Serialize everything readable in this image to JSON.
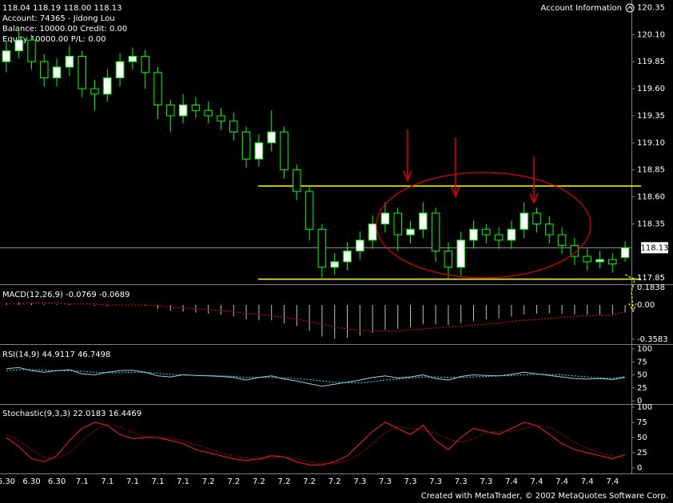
{
  "header": {
    "ohlc": "118.04 118.19 118.00 118.13",
    "account": "Account: 74365 - Jidong Lou",
    "balance": "Balance: 10000.00 Credit: 0.00",
    "equity": "Equity 10000.00 P/L: 0.00",
    "account_info": "Account Information"
  },
  "footer": "Created with MetaTrader, © 2002 MetaQuotes Software Corp.",
  "chart_data": [
    {
      "type": "candlestick",
      "categories": [
        "6.30",
        null,
        "6.30",
        null,
        "6.30",
        null,
        "7.1",
        null,
        "7.1",
        null,
        "7.1",
        null,
        "7.1",
        null,
        "7.1",
        null,
        "7.2",
        null,
        "7.2",
        null,
        "7.2",
        null,
        "7.2",
        null,
        "7.2",
        null,
        "7.2",
        null,
        "7.3",
        null,
        "7.3",
        null,
        "7.3",
        null,
        "7.3",
        null,
        "7.3",
        null,
        "7.3",
        null,
        "7.4",
        null,
        "7.4",
        null,
        "7.4",
        null,
        "7.4",
        null,
        "7.4",
        null
      ],
      "open": [
        119.85,
        119.95,
        120.05,
        119.85,
        119.7,
        119.8,
        119.9,
        119.6,
        119.55,
        119.7,
        119.85,
        119.9,
        119.75,
        119.45,
        119.35,
        119.45,
        119.4,
        119.35,
        119.3,
        119.2,
        118.95,
        119.1,
        119.2,
        118.85,
        118.65,
        118.3,
        117.95,
        118.0,
        118.1,
        118.2,
        118.35,
        118.45,
        118.25,
        118.3,
        118.45,
        118.1,
        117.95,
        118.2,
        118.3,
        118.25,
        118.2,
        118.3,
        118.45,
        118.35,
        118.25,
        118.15,
        118.05,
        118.0,
        118.02,
        118.04
      ],
      "high": [
        120.05,
        120.15,
        120.1,
        119.92,
        119.88,
        120.0,
        119.95,
        119.68,
        119.78,
        119.93,
        119.98,
        119.96,
        119.8,
        119.5,
        119.55,
        119.52,
        119.48,
        119.42,
        119.38,
        119.25,
        119.18,
        119.4,
        119.25,
        118.9,
        118.7,
        118.35,
        118.08,
        118.18,
        118.28,
        118.43,
        118.55,
        118.5,
        118.38,
        118.55,
        118.5,
        118.18,
        118.28,
        118.38,
        118.35,
        118.32,
        118.38,
        118.55,
        118.5,
        118.42,
        118.32,
        118.22,
        118.12,
        118.1,
        118.08,
        118.19
      ],
      "low": [
        119.75,
        119.88,
        119.78,
        119.62,
        119.62,
        119.72,
        119.52,
        119.4,
        119.48,
        119.62,
        119.78,
        119.6,
        119.32,
        119.2,
        119.28,
        119.33,
        119.28,
        119.22,
        119.12,
        118.87,
        118.88,
        119.02,
        118.77,
        118.57,
        118.2,
        117.85,
        117.88,
        117.92,
        118.02,
        118.12,
        118.27,
        118.1,
        118.17,
        118.22,
        118.0,
        117.85,
        117.87,
        118.12,
        118.17,
        118.12,
        118.12,
        118.22,
        118.27,
        118.17,
        118.07,
        117.97,
        117.92,
        117.94,
        117.9,
        118.0
      ],
      "close": [
        119.95,
        120.05,
        119.85,
        119.7,
        119.8,
        119.9,
        119.6,
        119.55,
        119.7,
        119.85,
        119.9,
        119.75,
        119.45,
        119.35,
        119.45,
        119.4,
        119.35,
        119.3,
        119.2,
        118.95,
        119.1,
        119.2,
        118.85,
        118.65,
        118.3,
        117.95,
        118.0,
        118.1,
        118.2,
        118.35,
        118.45,
        118.25,
        118.3,
        118.45,
        118.1,
        117.95,
        118.2,
        118.3,
        118.25,
        118.2,
        118.3,
        118.45,
        118.35,
        118.25,
        118.15,
        118.05,
        118.0,
        118.02,
        117.98,
        118.13
      ],
      "up_color": "#ffffff",
      "down_color": "#000000",
      "wick_color": "#00ff00",
      "ylim": [
        117.8,
        120.42
      ],
      "yticks": [
        120.35,
        {
          "value": 120.1,
          "label": "120.10"
        },
        119.85,
        {
          "value": 119.6,
          "label": "119.60"
        },
        119.35,
        {
          "value": 119.1,
          "label": "119.10"
        },
        118.85,
        {
          "value": 118.6,
          "label": "118.60"
        },
        118.35,
        117.85
      ],
      "current_price": 118.13,
      "hlines": [
        118.7,
        117.84
      ],
      "hline_color": "#ffff00",
      "grid": false
    },
    {
      "type": "macd",
      "label": "MACD(12,26,9) -0.0769 -0.0689",
      "values": [
        0.02,
        0.03,
        0.02,
        0.01,
        0.01,
        0.01,
        0,
        -0.01,
        -0.01,
        0,
        0,
        -0.01,
        -0.04,
        -0.06,
        -0.07,
        -0.08,
        -0.09,
        -0.1,
        -0.12,
        -0.15,
        -0.16,
        -0.16,
        -0.19,
        -0.22,
        -0.27,
        -0.33,
        -0.35,
        -0.34,
        -0.32,
        -0.29,
        -0.26,
        -0.25,
        -0.23,
        -0.2,
        -0.2,
        -0.21,
        -0.19,
        -0.17,
        -0.15,
        -0.14,
        -0.12,
        -0.1,
        -0.09,
        -0.09,
        -0.09,
        -0.1,
        -0.1,
        -0.1,
        -0.1,
        -0.08
      ],
      "signal": [
        0.01,
        0.01,
        0.02,
        0.02,
        0.02,
        0.01,
        0.01,
        0.01,
        0,
        0,
        0,
        0,
        -0.01,
        -0.02,
        -0.03,
        -0.04,
        -0.05,
        -0.06,
        -0.07,
        -0.09,
        -0.1,
        -0.11,
        -0.13,
        -0.15,
        -0.17,
        -0.2,
        -0.23,
        -0.25,
        -0.26,
        -0.27,
        -0.27,
        -0.27,
        -0.26,
        -0.25,
        -0.24,
        -0.23,
        -0.22,
        -0.21,
        -0.2,
        -0.19,
        -0.17,
        -0.16,
        -0.15,
        -0.14,
        -0.13,
        -0.12,
        -0.11,
        -0.11,
        -0.1,
        -0.07
      ],
      "color": "#c0c0c0",
      "signal_color": "#ff0000",
      "ylim": [
        -0.4,
        0.2
      ],
      "yticks": [
        0.1838,
        {
          "value": 0,
          "label": "0.00"
        },
        -0.3583
      ]
    },
    {
      "type": "line",
      "label": "RSI(14,9) 44.9117 46.7498",
      "values": [
        62,
        64,
        58,
        55,
        58,
        60,
        52,
        50,
        55,
        58,
        59,
        55,
        48,
        46,
        50,
        49,
        48,
        47,
        45,
        40,
        45,
        48,
        42,
        38,
        33,
        28,
        32,
        36,
        40,
        45,
        48,
        44,
        46,
        50,
        43,
        40,
        47,
        50,
        49,
        48,
        51,
        55,
        52,
        49,
        46,
        43,
        42,
        43,
        41,
        45
      ],
      "signal": [
        58,
        60,
        60,
        59,
        58,
        58,
        57,
        55,
        54,
        54,
        55,
        55,
        53,
        51,
        50,
        49,
        49,
        48,
        47,
        45,
        45,
        45,
        44,
        43,
        41,
        38,
        36,
        35,
        35,
        37,
        40,
        42,
        44,
        46,
        46,
        45,
        45,
        46,
        47,
        48,
        49,
        50,
        51,
        51,
        50,
        48,
        46,
        44,
        43,
        47
      ],
      "color": "#b0c4de",
      "signal_color": "#00ffff",
      "ylim": [
        -4.6,
        106.2
      ],
      "yticks": [
        100,
        75,
        50,
        25,
        0
      ]
    },
    {
      "type": "line",
      "label": "Stochastic(9,3,3) 22.0183 16.4469",
      "values": [
        50,
        35,
        15,
        10,
        20,
        45,
        65,
        75,
        70,
        55,
        48,
        50,
        50,
        45,
        40,
        30,
        25,
        20,
        15,
        12,
        15,
        20,
        18,
        10,
        5,
        5,
        10,
        20,
        40,
        60,
        75,
        65,
        55,
        70,
        45,
        30,
        50,
        65,
        60,
        55,
        65,
        75,
        70,
        55,
        40,
        30,
        25,
        20,
        15,
        22
      ],
      "signal": [
        55,
        45,
        30,
        18,
        15,
        25,
        45,
        62,
        72,
        68,
        58,
        52,
        50,
        48,
        45,
        38,
        32,
        25,
        20,
        16,
        14,
        16,
        18,
        15,
        10,
        7,
        7,
        12,
        23,
        40,
        58,
        68,
        65,
        63,
        57,
        48,
        42,
        48,
        58,
        60,
        60,
        65,
        70,
        67,
        55,
        42,
        32,
        25,
        20,
        16
      ],
      "color": "#ff2020",
      "signal_color": "#c00000",
      "ylim": [
        -7.9,
        104
      ],
      "yticks": [
        100,
        75,
        50,
        25,
        0
      ]
    }
  ]
}
